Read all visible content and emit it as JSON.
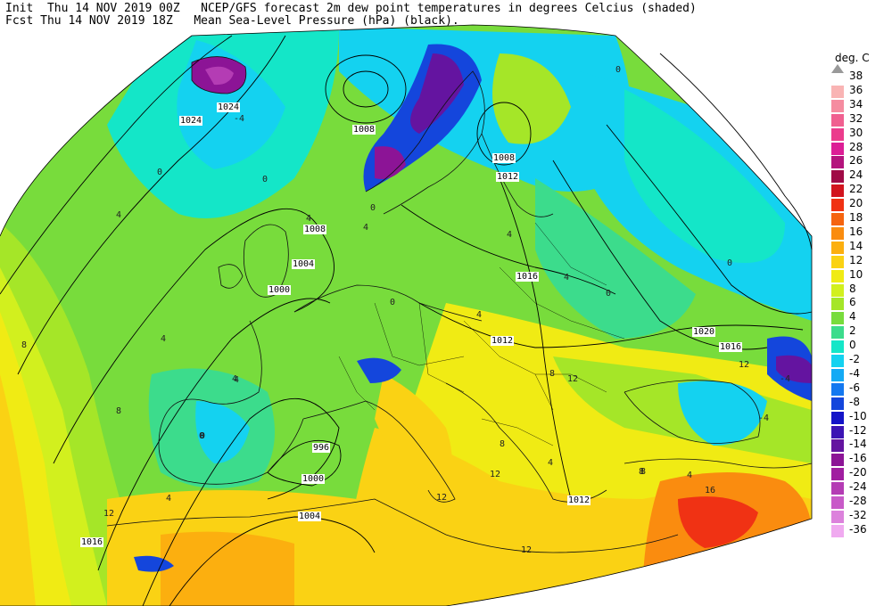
{
  "header": {
    "line1": "Init  Thu 14 NOV 2019 00Z   NCEP/GFS forecast 2m dew point temperatures in degrees Celcius (shaded)",
    "line2": "Fcst Thu 14 NOV 2019 18Z   Mean Sea-Level Pressure (hPa) (black)."
  },
  "legend": {
    "title": "deg. C",
    "entries": [
      {
        "label": "38",
        "color": "#ffffff"
      },
      {
        "label": "36",
        "color": "#f9b4b4"
      },
      {
        "label": "34",
        "color": "#f58ca0"
      },
      {
        "label": "32",
        "color": "#f06090"
      },
      {
        "label": "30",
        "color": "#eb3c8c"
      },
      {
        "label": "28",
        "color": "#dc1e96"
      },
      {
        "label": "26",
        "color": "#b4147d"
      },
      {
        "label": "24",
        "color": "#a00a46"
      },
      {
        "label": "22",
        "color": "#d2141e"
      },
      {
        "label": "20",
        "color": "#f03214"
      },
      {
        "label": "18",
        "color": "#f5640f"
      },
      {
        "label": "16",
        "color": "#fa8c0f"
      },
      {
        "label": "14",
        "color": "#fcaf0f"
      },
      {
        "label": "12",
        "color": "#fad214"
      },
      {
        "label": "10",
        "color": "#f0eb14"
      },
      {
        "label": "8",
        "color": "#d2f01e"
      },
      {
        "label": "6",
        "color": "#a5e628"
      },
      {
        "label": "4",
        "color": "#78dc3c"
      },
      {
        "label": "2",
        "color": "#3cdc8c"
      },
      {
        "label": "0",
        "color": "#14e6c8"
      },
      {
        "label": "-2",
        "color": "#14d2f0"
      },
      {
        "label": "-4",
        "color": "#14aaf5"
      },
      {
        "label": "-6",
        "color": "#1478f0"
      },
      {
        "label": "-8",
        "color": "#1446dc"
      },
      {
        "label": "-10",
        "color": "#1414c8"
      },
      {
        "label": "-12",
        "color": "#3c14b4"
      },
      {
        "label": "-14",
        "color": "#6414a0"
      },
      {
        "label": "-16",
        "color": "#8c1496"
      },
      {
        "label": "-20",
        "color": "#a01ea0"
      },
      {
        "label": "-24",
        "color": "#b43cb4"
      },
      {
        "label": "-28",
        "color": "#c85ac8"
      },
      {
        "label": "-32",
        "color": "#dc82dc"
      },
      {
        "label": "-36",
        "color": "#f0aaf0"
      }
    ]
  },
  "isobar_labels": [
    "1024",
    "1024",
    "1008",
    "1008",
    "1012",
    "1008",
    "1004",
    "1000",
    "1016",
    "1012",
    "1020",
    "1016",
    "996",
    "1000",
    "1004",
    "1012",
    "1016"
  ],
  "contour_labels": [
    "0",
    "4",
    "0",
    "4",
    "4",
    "0",
    "-4",
    "0",
    "4",
    "0",
    "4",
    "4",
    "0",
    "8",
    "4",
    "4",
    "8",
    "0",
    "4",
    "8",
    "12",
    "12",
    "12",
    "8",
    "12",
    "4",
    "12",
    "12",
    "8",
    "16",
    "-4",
    "-4",
    "0",
    "0",
    "4",
    "4",
    "8"
  ]
}
